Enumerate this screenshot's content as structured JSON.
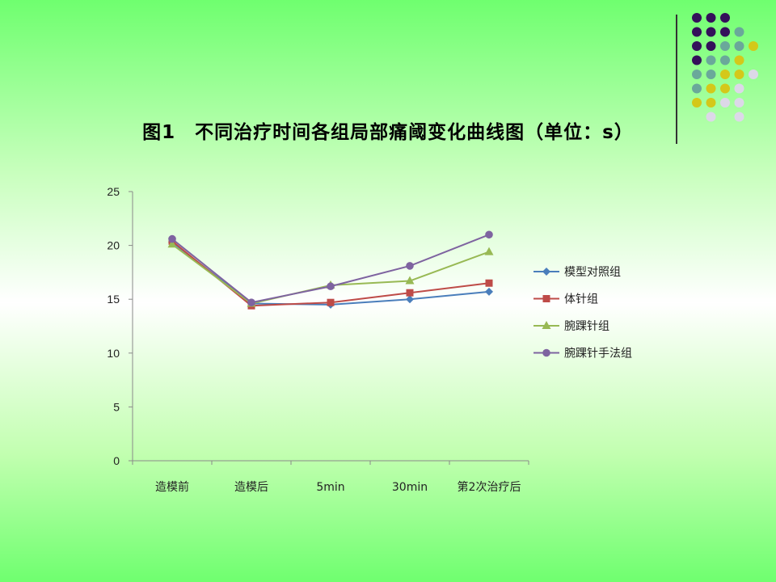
{
  "slide": {
    "title": "图1　不同治疗时间各组局部痛阈变化曲线图（单位：s）"
  },
  "decor": {
    "dot_colors": {
      "purple": "#34105a",
      "teal": "#6aa89a",
      "yellow": "#d4c81a",
      "lavender": "#dcd8e8"
    },
    "dot_rows": [
      [
        "purple",
        "purple",
        "purple"
      ],
      [
        "purple",
        "purple",
        "purple",
        "teal"
      ],
      [
        "purple",
        "purple",
        "teal",
        "teal",
        "yellow"
      ],
      [
        "purple",
        "teal",
        "teal",
        "yellow"
      ],
      [
        "teal",
        "teal",
        "yellow",
        "yellow",
        "lavender"
      ],
      [
        "teal",
        "yellow",
        "yellow",
        "lavender"
      ],
      [
        "yellow",
        "yellow",
        "lavender",
        "lavender"
      ],
      [
        "lavender",
        "lavender"
      ]
    ]
  },
  "chart_data": {
    "type": "line",
    "title": "图1　不同治疗时间各组局部痛阈变化曲线图（单位：s）",
    "categories": [
      "造模前",
      "造模后",
      "5min",
      "30min",
      "第2次治疗后"
    ],
    "ylim": [
      0,
      25
    ],
    "yticks": [
      0,
      5,
      10,
      15,
      20,
      25
    ],
    "grid": false,
    "legend_position": "right",
    "series": [
      {
        "name": "模型对照组",
        "color": "#4a7ebb",
        "marker": "diamond",
        "values": [
          20.3,
          14.6,
          14.5,
          15.0,
          15.7
        ]
      },
      {
        "name": "体针组",
        "color": "#be4b48",
        "marker": "square",
        "values": [
          20.4,
          14.4,
          14.7,
          15.6,
          16.5
        ]
      },
      {
        "name": "腕踝针组",
        "color": "#98b954",
        "marker": "triangle",
        "values": [
          20.1,
          14.6,
          16.3,
          16.7,
          19.4
        ]
      },
      {
        "name": "腕踝针手法组",
        "color": "#7e63a0",
        "marker": "circle",
        "values": [
          20.6,
          14.7,
          16.2,
          18.1,
          21.0
        ]
      }
    ]
  }
}
